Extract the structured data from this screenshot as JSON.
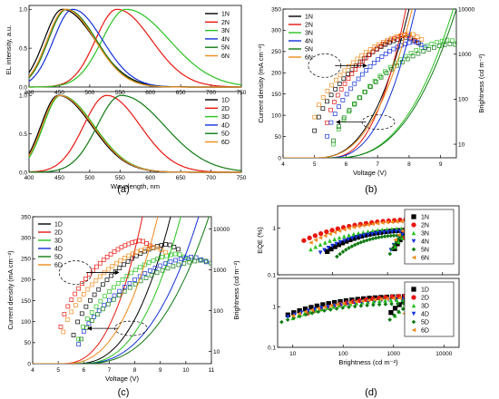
{
  "panel_labels": {
    "a": "(a)",
    "b": "(b)",
    "c": "(c)",
    "d": "(d)"
  },
  "colors": {
    "1": "#000000",
    "2": "#e8170f",
    "3": "#27c21f",
    "4": "#1330d8",
    "5": "#0f7a12",
    "6": "#f08a19"
  },
  "chart_data": [
    {
      "panel": "a-top",
      "type": "line",
      "ylabel": "EL intensity, a.u.",
      "xlim": [
        400,
        750
      ],
      "ylim": [
        0,
        1.05
      ],
      "xticks": [
        400,
        450,
        500,
        550,
        600,
        650,
        700,
        750
      ],
      "yticks": [
        "0.0",
        "0.5",
        "1.0"
      ],
      "legend": "top-right",
      "series": [
        {
          "name": "1N",
          "peak": 455,
          "w_left": 38,
          "w_right": 68
        },
        {
          "name": "2N",
          "peak": 545,
          "w_left": 45,
          "w_right": 72
        },
        {
          "name": "3N",
          "peak": 560,
          "w_left": 50,
          "w_right": 90
        },
        {
          "name": "4N",
          "peak": 472,
          "w_left": 40,
          "w_right": 62
        },
        {
          "name": "5N",
          "peak": 462,
          "w_left": 38,
          "w_right": 62
        },
        {
          "name": "6N",
          "peak": 460,
          "w_left": 38,
          "w_right": 62
        }
      ]
    },
    {
      "panel": "a-bottom",
      "type": "line",
      "xlabel": "Wavelength, nm",
      "xlim": [
        400,
        750
      ],
      "ylim": [
        0,
        1.05
      ],
      "xticks": [
        400,
        450,
        500,
        550,
        600,
        650,
        700,
        750
      ],
      "yticks": [
        "0.0",
        "0.5",
        "1.0"
      ],
      "legend": "top-right",
      "series": [
        {
          "name": "1D",
          "peak": 448,
          "w_left": 36,
          "w_right": 70
        },
        {
          "name": "2D",
          "peak": 528,
          "w_left": 48,
          "w_right": 70
        },
        {
          "name": "3D",
          "peak": 452,
          "w_left": 36,
          "w_right": 70
        },
        {
          "name": "4D",
          "peak": 450,
          "w_left": 36,
          "w_right": 70
        },
        {
          "name": "5D",
          "peak": 552,
          "w_left": 50,
          "w_right": 90
        },
        {
          "name": "6D",
          "peak": 450,
          "w_left": 36,
          "w_right": 70
        }
      ]
    },
    {
      "panel": "b",
      "type": "line+scatter",
      "xlabel": "Voltage (V)",
      "ylabel": "Current density (mA cm⁻²)",
      "y2label": "Brightness (cd m⁻²)",
      "xlim": [
        4,
        9.5
      ],
      "ylim": [
        0,
        350
      ],
      "y2lim": [
        5,
        10000
      ],
      "y2scale": "log",
      "xticks": [
        4,
        5,
        6,
        7,
        8,
        9
      ],
      "yticks": [
        0,
        50,
        100,
        150,
        200,
        250,
        300,
        350
      ],
      "y2ticks": [
        "10",
        "100",
        "1000",
        "10000"
      ],
      "legend": "top-left",
      "series": [
        {
          "name": "1N",
          "v_on": 5.0,
          "v_350": 8.0,
          "b_start": 20,
          "b_max": 2500
        },
        {
          "name": "2N",
          "v_on": 5.4,
          "v_350": 7.9,
          "b_start": 30,
          "b_max": 2800
        },
        {
          "name": "3N",
          "v_on": 5.6,
          "v_350": 9.4,
          "b_start": 10,
          "b_max": 2200
        },
        {
          "name": "4N",
          "v_on": 5.4,
          "v_350": 8.2,
          "b_start": 15,
          "b_max": 2000
        },
        {
          "name": "5N",
          "v_on": 5.6,
          "v_350": 9.5,
          "b_start": 12,
          "b_max": 1800
        },
        {
          "name": "6N",
          "v_on": 5.0,
          "v_350": 8.1,
          "b_start": 40,
          "b_max": 3000
        }
      ]
    },
    {
      "panel": "c",
      "type": "line+scatter",
      "xlabel": "Voltage (V)",
      "ylabel": "Current density (mA cm⁻²)",
      "y2label": "Brightness (cd m⁻²)",
      "xlim": [
        4,
        11
      ],
      "ylim": [
        0,
        350
      ],
      "y2lim": [
        5,
        20000
      ],
      "y2scale": "log",
      "xticks": [
        4,
        5,
        6,
        7,
        8,
        9,
        10,
        11
      ],
      "yticks": [
        0,
        50,
        100,
        150,
        200,
        250,
        300,
        350
      ],
      "y2ticks": [
        "10",
        "100",
        "1000",
        "10000"
      ],
      "legend": "top-left",
      "series": [
        {
          "name": "1D",
          "v_on": 5.6,
          "v_350": 9.4,
          "b_start": 25,
          "b_max": 4500
        },
        {
          "name": "2D",
          "v_on": 5.1,
          "v_350": 8.3,
          "b_start": 40,
          "b_max": 5500
        },
        {
          "name": "3D",
          "v_on": 5.8,
          "v_350": 9.8,
          "b_start": 20,
          "b_max": 2600
        },
        {
          "name": "4D",
          "v_on": 5.8,
          "v_350": 10.5,
          "b_start": 15,
          "b_max": 2200
        },
        {
          "name": "5D",
          "v_on": 5.9,
          "v_350": 10.9,
          "b_start": 20,
          "b_max": 1800
        },
        {
          "name": "6D",
          "v_on": 5.2,
          "v_350": 8.9,
          "b_start": 30,
          "b_max": 3800
        }
      ]
    },
    {
      "panel": "d-top",
      "type": "scatter",
      "ylabel": "EQE (%)",
      "xscale": "log",
      "yscale": "log",
      "xlim": [
        10,
        20000
      ],
      "ylim": [
        0.1,
        3
      ],
      "xticks": [
        "10",
        "100",
        "1000",
        "10000"
      ],
      "yticks": [
        "0.1",
        "1"
      ],
      "legend": "top-right",
      "series": [
        {
          "name": "1N",
          "b_min": 80,
          "b_max": 2500,
          "eqe_peak": 0.9
        },
        {
          "name": "2N",
          "b_min": 30,
          "b_max": 5000,
          "eqe_peak": 1.55
        },
        {
          "name": "3N",
          "b_min": 40,
          "b_max": 3000,
          "eqe_peak": 1.0
        },
        {
          "name": "4N",
          "b_min": 60,
          "b_max": 2200,
          "eqe_peak": 0.85
        },
        {
          "name": "5N",
          "b_min": 120,
          "b_max": 1800,
          "eqe_peak": 0.7
        },
        {
          "name": "6N",
          "b_min": 40,
          "b_max": 3000,
          "eqe_peak": 1.4
        }
      ]
    },
    {
      "panel": "d-bottom",
      "type": "scatter",
      "xlabel": "Brightness (cd m⁻²)",
      "xscale": "log",
      "yscale": "log",
      "xlim": [
        5,
        20000
      ],
      "ylim": [
        0.1,
        5
      ],
      "xticks": [
        "10",
        "100",
        "1000",
        "10000"
      ],
      "yticks": [
        "0.1",
        "1"
      ],
      "legend": "top-right",
      "series": [
        {
          "name": "1D",
          "b_min": 8,
          "b_max": 2500,
          "eqe_peak": 1.8
        },
        {
          "name": "2D",
          "b_min": 20,
          "b_max": 12000,
          "eqe_peak": 2.0
        },
        {
          "name": "3D",
          "b_min": 10,
          "b_max": 3000,
          "eqe_peak": 1.5
        },
        {
          "name": "4D",
          "b_min": 8,
          "b_max": 6000,
          "eqe_peak": 1.6
        },
        {
          "name": "5D",
          "b_min": 6,
          "b_max": 2500,
          "eqe_peak": 1.2
        },
        {
          "name": "6D",
          "b_min": 10,
          "b_max": 5000,
          "eqe_peak": 1.7
        }
      ]
    }
  ]
}
